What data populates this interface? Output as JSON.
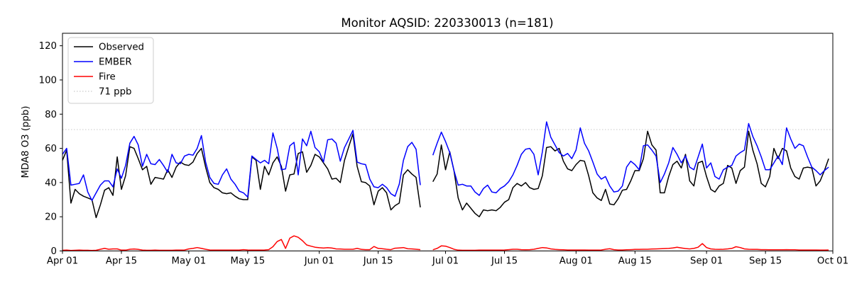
{
  "chart_data": {
    "type": "line",
    "title": "Monitor AQSID: 220330013 (n=181)",
    "xlabel": "",
    "ylabel": "MDA8 O3 (ppb)",
    "ylim": [
      0,
      127.3
    ],
    "yticks": [
      0,
      20,
      40,
      60,
      80,
      100,
      120
    ],
    "x_domain_days": 183,
    "x_start_date": "Apr 01",
    "x_end_date": "Oct 01",
    "grid": false,
    "legend_position": "upper-left",
    "gap_note": "no data Jun 26-27",
    "xticks": [
      {
        "label": "Apr 01",
        "day": 0
      },
      {
        "label": "Apr 15",
        "day": 14
      },
      {
        "label": "May 01",
        "day": 30
      },
      {
        "label": "May 15",
        "day": 44
      },
      {
        "label": "Jun 01",
        "day": 61
      },
      {
        "label": "Jun 15",
        "day": 75
      },
      {
        "label": "Jul 01",
        "day": 91
      },
      {
        "label": "Jul 15",
        "day": 105
      },
      {
        "label": "Aug 01",
        "day": 122
      },
      {
        "label": "Aug 15",
        "day": 136
      },
      {
        "label": "Sep 01",
        "day": 153
      },
      {
        "label": "Sep 15",
        "day": 167
      },
      {
        "label": "Oct 01",
        "day": 183
      }
    ],
    "threshold": {
      "value": 71,
      "label": "71 ppb",
      "color": "#d3d3d3",
      "style": "dotted"
    },
    "series": [
      {
        "name": "Observed",
        "color": "#000000",
        "values": [
          53,
          59,
          28,
          36,
          33.5,
          32,
          31,
          30,
          19.5,
          27,
          35.5,
          37,
          32.5,
          55,
          36,
          44,
          61,
          60,
          54,
          47.5,
          49.5,
          39,
          43,
          42.5,
          42,
          47.5,
          43,
          49,
          52,
          50.5,
          50,
          52,
          57,
          60,
          49,
          40,
          37,
          36,
          34,
          33.5,
          34,
          32,
          30.5,
          30,
          30,
          55,
          53,
          36,
          49.5,
          44.5,
          51.5,
          55,
          49.5,
          35,
          44.5,
          45,
          57,
          58,
          46,
          50,
          56.5,
          55,
          51.5,
          48,
          42,
          42.5,
          40,
          53,
          61,
          68.5,
          49.5,
          40.5,
          40,
          38,
          27,
          35,
          37,
          34,
          24,
          26.5,
          28,
          44.5,
          47.5,
          45,
          43,
          25.5,
          null,
          null,
          40.5,
          45,
          62,
          47.5,
          58,
          47,
          31,
          24,
          28,
          25,
          22,
          20,
          24,
          23.5,
          24,
          23.5,
          25.5,
          28.5,
          30,
          37,
          39.5,
          38,
          40,
          37,
          36,
          36.5,
          44,
          60.5,
          61,
          58.5,
          60,
          52.5,
          48,
          47,
          50.5,
          53,
          52.5,
          44,
          34,
          31,
          29.5,
          36,
          27.5,
          27,
          30.5,
          35.5,
          36,
          41,
          47,
          47,
          54,
          70,
          62,
          59,
          34,
          34,
          43.5,
          50.5,
          52.5,
          48.5,
          56.5,
          41,
          38,
          51.5,
          52.5,
          43.5,
          36,
          34.5,
          38,
          39.5,
          50,
          48.5,
          39.5,
          47,
          49,
          70,
          59,
          51,
          39.5,
          37.5,
          43.5,
          60,
          54,
          60,
          58.5,
          48.5,
          43.5,
          42,
          48.5,
          49,
          48.5,
          38,
          41,
          47,
          54
        ]
      },
      {
        "name": "EMBER",
        "color": "#0000ff",
        "values": [
          56.5,
          60,
          38.5,
          39,
          39.5,
          44.5,
          34.5,
          29.5,
          34,
          38.5,
          41,
          41,
          37.5,
          48,
          42.5,
          50,
          63,
          67,
          62,
          49.5,
          56.5,
          51,
          50.5,
          53.5,
          50,
          46,
          56.5,
          51.5,
          51,
          55.5,
          56.5,
          56,
          60,
          67.5,
          52,
          43,
          39.5,
          39,
          44.5,
          48,
          42,
          39,
          35,
          34,
          31.5,
          55.5,
          53.5,
          51.5,
          53,
          51,
          69,
          60,
          47.5,
          48,
          61.5,
          63.5,
          44.5,
          65.5,
          61.5,
          70,
          60.5,
          58,
          52,
          65,
          65.5,
          63,
          52.5,
          60.5,
          65.5,
          70.5,
          52,
          51,
          50.5,
          42,
          37.5,
          37,
          39,
          37,
          33.5,
          32,
          39,
          53,
          61,
          63.5,
          59.5,
          38.5,
          null,
          null,
          56,
          63,
          69.5,
          64,
          57.5,
          47,
          38.5,
          39,
          38,
          38,
          34.5,
          32.5,
          36.5,
          38.5,
          34.5,
          34,
          36.5,
          38,
          40.5,
          44.5,
          50,
          56.5,
          59.5,
          60,
          56.5,
          44.5,
          58,
          75.5,
          66.5,
          62,
          57.5,
          55.5,
          57,
          54,
          59,
          72,
          63,
          58.5,
          52,
          45,
          42,
          43.5,
          38,
          34.5,
          35,
          38,
          49,
          52.5,
          50.5,
          47.5,
          61.5,
          62,
          59,
          55.5,
          40,
          45,
          51.5,
          60.5,
          56.5,
          51.5,
          55.5,
          49,
          47.5,
          55,
          62.5,
          48.5,
          51.5,
          43.5,
          42,
          47.5,
          49,
          50,
          55.5,
          57.5,
          59,
          74.5,
          67,
          61.5,
          55,
          47.5,
          47.5,
          51.5,
          55.5,
          50.5,
          72,
          65.5,
          60,
          62.5,
          61.5,
          55,
          49,
          47,
          44.5,
          47,
          49
        ]
      },
      {
        "name": "Fire",
        "color": "#ff0000",
        "values": [
          0.4,
          0.5,
          0.3,
          0.4,
          0.5,
          0.4,
          0.4,
          0.3,
          0.4,
          1,
          1.5,
          1,
          1.2,
          1.2,
          0.5,
          0.5,
          1,
          1.1,
          0.9,
          0.5,
          0.4,
          0.4,
          0.5,
          0.4,
          0.4,
          0.4,
          0.4,
          0.5,
          0.5,
          0.6,
          1.2,
          1.5,
          2,
          1.5,
          1,
          0.6,
          0.5,
          0.5,
          0.5,
          0.5,
          0.5,
          0.5,
          0.5,
          0.8,
          0.6,
          0.5,
          0.5,
          0.5,
          0.6,
          0.8,
          2.5,
          5.5,
          6.7,
          1.5,
          7.5,
          8.8,
          8,
          6,
          3.5,
          2.8,
          2.2,
          1.9,
          1.7,
          1.9,
          1.7,
          1.2,
          1.1,
          1,
          1,
          1,
          1.5,
          0.9,
          0.8,
          0.8,
          2.6,
          1.5,
          1.3,
          1,
          0.8,
          1.6,
          1.8,
          2,
          1.3,
          1.2,
          1,
          0.8,
          null,
          null,
          0.7,
          1.5,
          3,
          2.8,
          2,
          1,
          0.5,
          0.4,
          0.4,
          0.4,
          0.4,
          0.5,
          0.5,
          0.5,
          0.5,
          0.5,
          0.5,
          0.6,
          0.8,
          1,
          1,
          0.8,
          0.7,
          0.8,
          1,
          1.5,
          2,
          1.8,
          1.2,
          0.9,
          0.8,
          0.7,
          0.6,
          0.6,
          0.6,
          0.6,
          0.6,
          0.5,
          0.5,
          0.5,
          0.6,
          1,
          1.3,
          0.8,
          0.6,
          0.6,
          0.7,
          0.8,
          0.9,
          0.9,
          1,
          1,
          1.1,
          1.2,
          1.3,
          1.4,
          1.5,
          1.8,
          2.2,
          1.8,
          1.4,
          1.2,
          1.5,
          2.2,
          4.3,
          2,
          1.2,
          1,
          0.9,
          1,
          1.2,
          1.5,
          2.5,
          2,
          1.2,
          1,
          0.9,
          0.9,
          0.8,
          0.8,
          0.7,
          0.7,
          0.7,
          0.7,
          0.8,
          0.7,
          0.7,
          0.6,
          0.6,
          0.6,
          0.6,
          0.6,
          0.5,
          0.5,
          0.6
        ]
      }
    ]
  }
}
